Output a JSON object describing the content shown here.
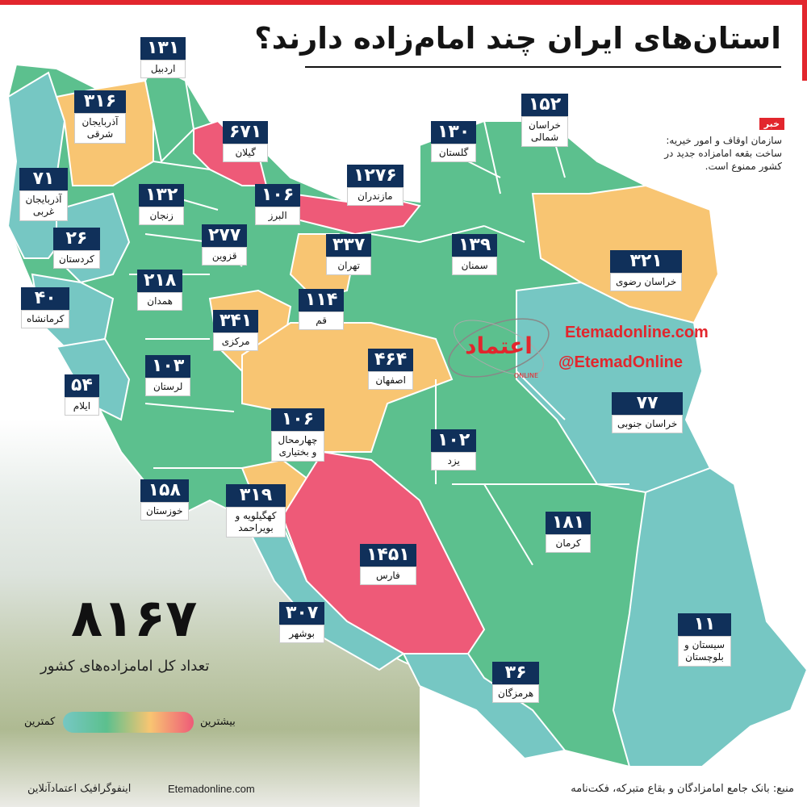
{
  "title": "استان‌های ایران چند امام‌زاده دارند؟",
  "news": {
    "tag": "خبر",
    "text": "سازمان اوقاف و امور خیریه: ساخت بقعه امامزاده جدید در کشور ممنوع است."
  },
  "brand": {
    "website": "Etemadonline.com",
    "handle": "@EtemadOnline",
    "logo_text": "اعتماد",
    "logo_sub": "ONLINE"
  },
  "total": {
    "value": "۸۱۶۷",
    "caption": "تعداد کل امامزاده‌های کشور"
  },
  "legend": {
    "high": "بیشترین",
    "low": "کمترین",
    "colors": [
      "#76c7c3",
      "#5cc08e",
      "#f8c572",
      "#ee5a78"
    ]
  },
  "footer": {
    "credit": "اینفوگرافیک اعتمادآنلاین",
    "site": "Etemadonline.com",
    "source": "منبع: بانک جامع امامزادگان و بقاع متبرکه، فکت‌نامه"
  },
  "colors": {
    "high": "#ee5a78",
    "mid_high": "#f8c572",
    "mid": "#5cc08e",
    "low": "#76c7c3",
    "label_bg": "#10305a",
    "accent": "#e2262d"
  },
  "provinces": [
    {
      "name": "اردبیل",
      "count": "۱۳۱",
      "category": "mid"
    },
    {
      "name": "آذربایجان شرقی",
      "count": "۳۱۶",
      "category": "mid_high"
    },
    {
      "name": "گیلان",
      "count": "۶۷۱",
      "category": "high"
    },
    {
      "name": "آذربایجان غربی",
      "count": "۷۱",
      "category": "low"
    },
    {
      "name": "زنجان",
      "count": "۱۳۲",
      "category": "mid"
    },
    {
      "name": "البرز",
      "count": "۱۰۶",
      "category": "mid"
    },
    {
      "name": "مازندران",
      "count": "۱۲۷۶",
      "category": "high"
    },
    {
      "name": "گلستان",
      "count": "۱۳۰",
      "category": "mid"
    },
    {
      "name": "خراسان شمالی",
      "count": "۱۵۲",
      "category": "mid"
    },
    {
      "name": "کردستان",
      "count": "۲۶",
      "category": "low"
    },
    {
      "name": "قزوین",
      "count": "۲۷۷",
      "category": "mid"
    },
    {
      "name": "تهران",
      "count": "۳۳۷",
      "category": "mid_high"
    },
    {
      "name": "سمنان",
      "count": "۱۳۹",
      "category": "mid"
    },
    {
      "name": "خراسان رضوی",
      "count": "۳۲۱",
      "category": "mid_high"
    },
    {
      "name": "همدان",
      "count": "۲۱۸",
      "category": "mid"
    },
    {
      "name": "کرمانشاه",
      "count": "۴۰",
      "category": "low"
    },
    {
      "name": "مرکزی",
      "count": "۳۴۱",
      "category": "mid_high"
    },
    {
      "name": "قم",
      "count": "۱۱۴",
      "category": "mid"
    },
    {
      "name": "لرستان",
      "count": "۱۰۳",
      "category": "mid"
    },
    {
      "name": "اصفهان",
      "count": "۴۶۴",
      "category": "mid_high"
    },
    {
      "name": "ایلام",
      "count": "۵۴",
      "category": "low"
    },
    {
      "name": "چهارمحال و بختیاری",
      "count": "۱۰۶",
      "category": "mid"
    },
    {
      "name": "یزد",
      "count": "۱۰۲",
      "category": "mid"
    },
    {
      "name": "خراسان جنوبی",
      "count": "۷۷",
      "category": "low"
    },
    {
      "name": "خوزستان",
      "count": "۱۵۸",
      "category": "mid"
    },
    {
      "name": "کهگیلویه و بویراحمد",
      "count": "۳۱۹",
      "category": "mid_high"
    },
    {
      "name": "کرمان",
      "count": "۱۸۱",
      "category": "mid"
    },
    {
      "name": "فارس",
      "count": "۱۴۵۱",
      "category": "high"
    },
    {
      "name": "بوشهر",
      "count": "۳۰۷",
      "category": "low"
    },
    {
      "name": "سیستان و بلوچستان",
      "count": "۱۱",
      "category": "low"
    },
    {
      "name": "هرمزگان",
      "count": "۳۶",
      "category": "low"
    }
  ]
}
